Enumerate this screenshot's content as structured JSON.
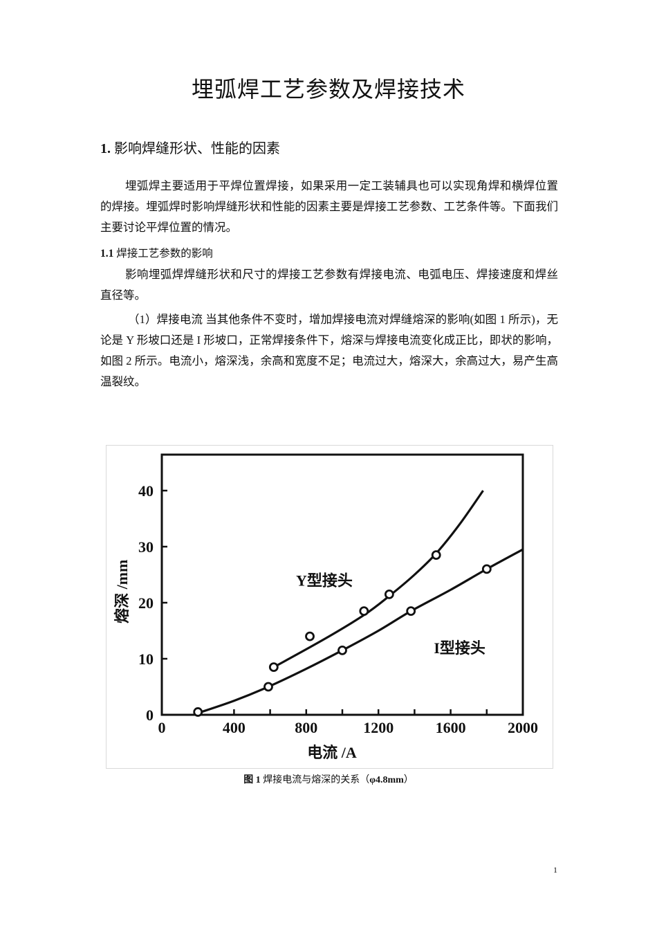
{
  "document": {
    "title": "埋弧焊工艺参数及焊接技术",
    "section1": {
      "number": "1.",
      "heading": "影响焊缝形状、性能的因素"
    },
    "paragraph1": "埋弧焊主要适用于平焊位置焊接，如果采用一定工装辅具也可以实现角焊和横焊位置的焊接。埋弧焊时影响焊缝形状和性能的因素主要是焊接工艺参数、工艺条件等。下面我们主要讨论平焊位置的情况。",
    "section1_1": {
      "number": "1.1",
      "heading": "焊接工艺参数的影响"
    },
    "paragraph2": "影响埋弧焊焊缝形状和尺寸的焊接工艺参数有焊接电流、电弧电压、焊接速度和焊丝直径等。",
    "paragraph3": "（1）焊接电流  当其他条件不变时，增加焊接电流对焊缝熔深的影响(如图 1 所示)，无论是 Y 形坡口还是 I 形坡口，正常焊接条件下，熔深与焊接电流变化成正比，即状的影响，如图 2 所示。电流小，熔深浅，余高和宽度不足；电流过大，熔深大，余高过大，易产生高温裂纹。",
    "figure_caption": {
      "label": "图 1",
      "text": "焊接电流与熔深的关系（",
      "spec": "φ4.8mm",
      "close": "）"
    },
    "page_number": "1"
  },
  "chart_data": {
    "type": "scatter",
    "title": "",
    "xlabel": "电流 /A",
    "ylabel": "熔深 /mm",
    "xlim": [
      0,
      2000
    ],
    "ylim": [
      0,
      45
    ],
    "x_ticks": [
      "0",
      "400",
      "800",
      "1200",
      "1600",
      "2000"
    ],
    "y_ticks": [
      "0",
      "10",
      "20",
      "30",
      "40"
    ],
    "grid": false,
    "series": [
      {
        "name": "Y型接头",
        "points": [
          [
            620,
            8.5
          ],
          [
            820,
            14
          ],
          [
            1120,
            18.5
          ],
          [
            1260,
            21.5
          ],
          [
            1520,
            28.5
          ]
        ],
        "curve": [
          [
            620,
            8.5
          ],
          [
            900,
            13.5
          ],
          [
            1120,
            17.8
          ],
          [
            1260,
            21.2
          ],
          [
            1400,
            25.0
          ],
          [
            1520,
            28.8
          ],
          [
            1650,
            34.0
          ],
          [
            1780,
            40.0
          ]
        ]
      },
      {
        "name": "I型接头",
        "points": [
          [
            200,
            0.5
          ],
          [
            590,
            5
          ],
          [
            1000,
            11.5
          ],
          [
            1380,
            18.5
          ],
          [
            1800,
            26
          ]
        ],
        "curve": [
          [
            200,
            0.3
          ],
          [
            400,
            2.5
          ],
          [
            590,
            5.0
          ],
          [
            800,
            8.2
          ],
          [
            1000,
            11.5
          ],
          [
            1200,
            15.0
          ],
          [
            1380,
            18.5
          ],
          [
            1600,
            22.3
          ],
          [
            1800,
            26.0
          ],
          [
            2000,
            29.5
          ]
        ]
      }
    ],
    "annotations": [
      {
        "text": "Y型接头",
        "x": 900,
        "y": 23
      },
      {
        "text": "I型接头",
        "x": 1650,
        "y": 11
      }
    ]
  }
}
